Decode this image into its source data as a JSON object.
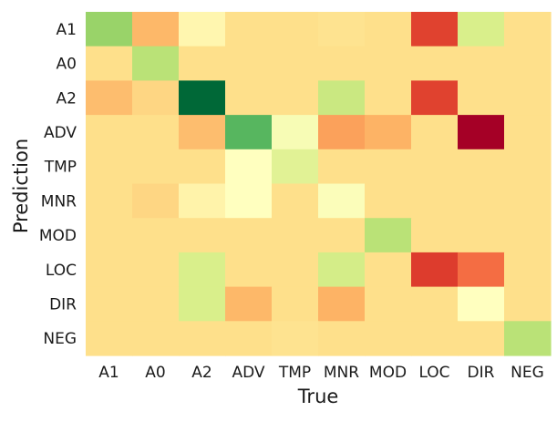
{
  "chart_data": {
    "type": "heatmap",
    "title": "",
    "xlabel": "True",
    "ylabel": "Prediction",
    "x_categories": [
      "A1",
      "A0",
      "A2",
      "ADV",
      "TMP",
      "MNR",
      "MOD",
      "LOC",
      "DIR",
      "NEG"
    ],
    "y_categories": [
      "A1",
      "A0",
      "A2",
      "ADV",
      "TMP",
      "MNR",
      "MOD",
      "LOC",
      "DIR",
      "NEG"
    ],
    "colormap": "RdYlGn",
    "colorbar": false,
    "grid": false,
    "values": [
      [
        0.72,
        0.32,
        0.47,
        0.4,
        0.4,
        0.41,
        0.4,
        0.13,
        0.6,
        0.4
      ],
      [
        0.4,
        0.66,
        0.4,
        0.4,
        0.4,
        0.4,
        0.4,
        0.4,
        0.4,
        0.4
      ],
      [
        0.33,
        0.38,
        1.0,
        0.4,
        0.4,
        0.63,
        0.4,
        0.13,
        0.4,
        0.4
      ],
      [
        0.4,
        0.4,
        0.33,
        0.82,
        0.52,
        0.28,
        0.31,
        0.4,
        0.0,
        0.4
      ],
      [
        0.4,
        0.4,
        0.4,
        0.5,
        0.58,
        0.4,
        0.4,
        0.4,
        0.4,
        0.4
      ],
      [
        0.4,
        0.38,
        0.46,
        0.5,
        0.4,
        0.51,
        0.4,
        0.4,
        0.4,
        0.4
      ],
      [
        0.4,
        0.4,
        0.4,
        0.4,
        0.4,
        0.4,
        0.66,
        0.4,
        0.4,
        0.4
      ],
      [
        0.4,
        0.4,
        0.6,
        0.4,
        0.4,
        0.61,
        0.4,
        0.12,
        0.2,
        0.4
      ],
      [
        0.4,
        0.4,
        0.6,
        0.32,
        0.4,
        0.31,
        0.4,
        0.4,
        0.5,
        0.4
      ],
      [
        0.4,
        0.4,
        0.4,
        0.4,
        0.41,
        0.4,
        0.4,
        0.4,
        0.4,
        0.66
      ]
    ]
  }
}
